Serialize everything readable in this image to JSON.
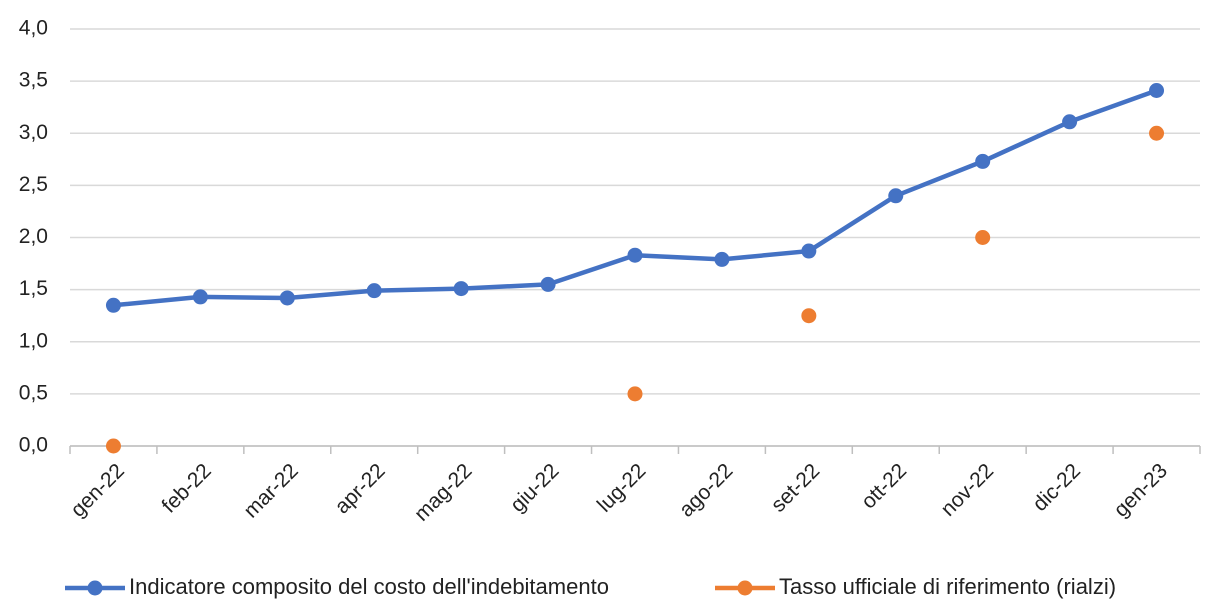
{
  "chart_data": {
    "type": "line",
    "categories": [
      "gen-22",
      "feb-22",
      "mar-22",
      "apr-22",
      "mag-22",
      "giu-22",
      "lug-22",
      "ago-22",
      "set-22",
      "ott-22",
      "nov-22",
      "dic-22",
      "gen-23"
    ],
    "series": [
      {
        "name": "Indicatore composito del costo dell'indebitamento",
        "color": "#4472c4",
        "show_line": true,
        "values": [
          1.35,
          1.43,
          1.42,
          1.49,
          1.51,
          1.55,
          1.83,
          1.79,
          1.87,
          2.4,
          2.73,
          3.11,
          3.41
        ]
      },
      {
        "name": "Tasso ufficiale di riferimento (rialzi)",
        "color": "#ed7d31",
        "show_line": false,
        "values": [
          0.0,
          null,
          null,
          null,
          null,
          null,
          0.5,
          null,
          1.25,
          null,
          2.0,
          null,
          3.0
        ]
      }
    ],
    "ylim": [
      0,
      4
    ],
    "yticks": [
      {
        "value": 0,
        "label": "0,0"
      },
      {
        "value": 0.5,
        "label": "0,5"
      },
      {
        "value": 1,
        "label": "1,0"
      },
      {
        "value": 1.5,
        "label": "1,5"
      },
      {
        "value": 2,
        "label": "2,0"
      },
      {
        "value": 2.5,
        "label": "2,5"
      },
      {
        "value": 3,
        "label": "3,0"
      },
      {
        "value": 3.5,
        "label": "3,5"
      },
      {
        "value": 4,
        "label": "4,0"
      }
    ],
    "grid": true,
    "legend": "bottom"
  }
}
